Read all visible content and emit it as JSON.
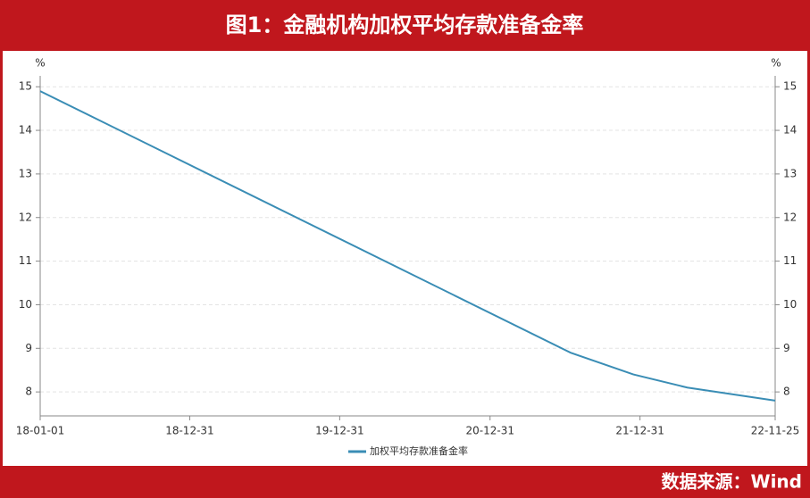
{
  "chart_data": {
    "type": "line",
    "title": "图1：金融机构加权平均存款准备金率",
    "source": "数据来源：Wind",
    "y_unit": "%",
    "x": [
      "18-01-01",
      "21-07-15",
      "21-12-15",
      "22-04-25",
      "22-11-25"
    ],
    "series": [
      {
        "name": "加权平均存款准备金率",
        "color": "#3a8db5",
        "values": [
          14.9,
          8.9,
          8.4,
          8.1,
          7.8
        ]
      }
    ],
    "xlim": [
      "18-01-01",
      "22-11-25"
    ],
    "xticks": [
      "18-01-01",
      "18-12-31",
      "19-12-31",
      "20-12-31",
      "21-12-31",
      "22-11-25"
    ],
    "ylim": [
      7.45,
      15.25
    ],
    "yticks": [
      8,
      9,
      10,
      11,
      12,
      13,
      14,
      15
    ],
    "grid": true,
    "legend": "bottom"
  }
}
